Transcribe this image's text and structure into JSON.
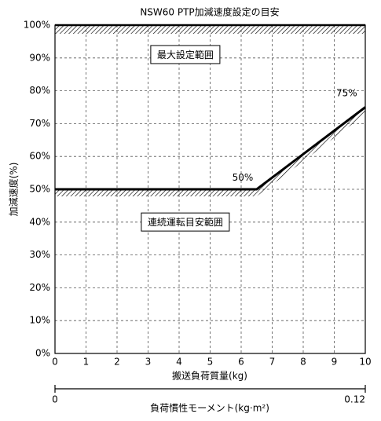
{
  "chart_data": {
    "type": "line",
    "title": "NSW60 PTP加減速度設定の目安",
    "x_label": "搬送負荷質量(kg)",
    "y_label": "加減速度(%)",
    "x2_label": "負荷慣性モーメント(kg·m²)",
    "x": [
      0,
      6.5,
      10
    ],
    "values": [
      50,
      50,
      75
    ],
    "color": "#000000",
    "xlim": [
      0,
      10
    ],
    "xticks": [
      0,
      1,
      2,
      3,
      4,
      5,
      6,
      7,
      8,
      9,
      10
    ],
    "ylim": [
      0,
      100
    ],
    "yticks": [
      {
        "value": 0,
        "label": "0%"
      },
      {
        "value": 10,
        "label": "10%"
      },
      {
        "value": 20,
        "label": "20%"
      },
      {
        "value": 30,
        "label": "30%"
      },
      {
        "value": 40,
        "label": "40%"
      },
      {
        "value": 50,
        "label": "50%"
      },
      {
        "value": 60,
        "label": "60%"
      },
      {
        "value": 70,
        "label": "70%"
      },
      {
        "value": 80,
        "label": "80%"
      },
      {
        "value": 90,
        "label": "90%"
      },
      {
        "value": 100,
        "label": "100%"
      }
    ],
    "x2lim": [
      0,
      0.12
    ],
    "x2ticks": [
      0,
      0.12
    ],
    "grid": true,
    "annotations": [
      "50%",
      "75%"
    ],
    "region_labels": [
      "最大設定範囲",
      "連続運転目安範囲"
    ]
  }
}
